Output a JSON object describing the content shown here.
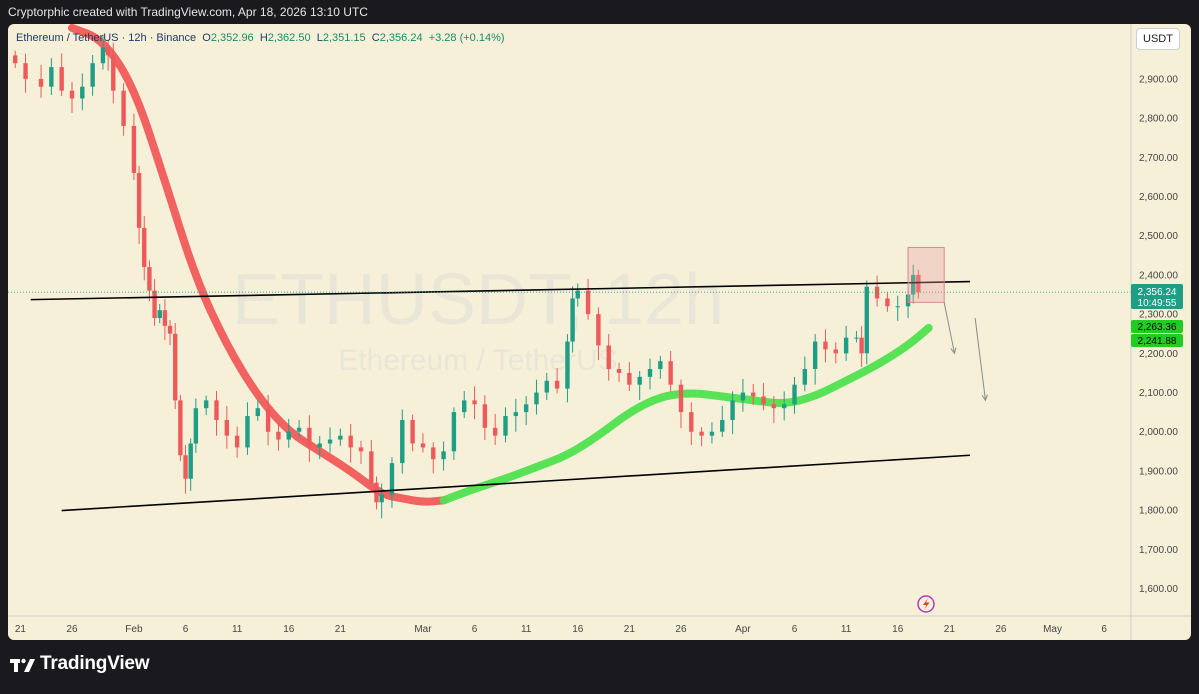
{
  "header": {
    "attribution": "Cryptorphic created with TradingView.com, Apr 18, 2026 13:10 UTC"
  },
  "legend": {
    "symbol": "Ethereum / TetherUS · 12h · Binance",
    "o_label": "O",
    "o_value": "2,352.96",
    "h_label": "H",
    "h_value": "2,362.50",
    "l_label": "L",
    "l_value": "2,351.15",
    "c_label": "C",
    "c_value": "2,356.24",
    "change": "+3.28 (+0.14%)"
  },
  "watermark": {
    "main": "ETHUSDT, 12h",
    "sub": "Ethereum / TetherUS"
  },
  "currency_button": "USDT",
  "price_badges": {
    "last_price": "2,356.24",
    "countdown": "10:49:55",
    "ma_fast": "2,263.36",
    "ma_slow": "2,241.88"
  },
  "footer": {
    "logo_text": "TradingView"
  },
  "colors": {
    "background": "#f6f0d9",
    "up_candle": "#1f9e86",
    "down_candle": "#ee5a5a",
    "ma_red": "#f05a5a",
    "ma_green": "#4fe04f",
    "trendline": "#000000",
    "highlight_box": "#e8a0a0"
  },
  "icons": {
    "bottom_marker": "lightning-icon",
    "logo": "tradingview-logo-icon"
  },
  "chart_data": {
    "type": "candlestick",
    "timeframe": "12h",
    "ylim": [
      1530,
      3040
    ],
    "y_ticks": [
      1600,
      1700,
      1800,
      1900,
      2000,
      2100,
      2200,
      2300,
      2400,
      2500,
      2600,
      2700,
      2800,
      2900
    ],
    "y_tick_labels": [
      "1,600.00",
      "1,700.00",
      "1,800.00",
      "1,900.00",
      "2,000.00",
      "2,100.00",
      "2,200.00",
      "2,300.00",
      "2,400.00",
      "2,500.00",
      "2,600.00",
      "2,700.00",
      "2,800.00",
      "2,900.00"
    ],
    "x_ticks": [
      {
        "label": "21",
        "day": -11
      },
      {
        "label": "26",
        "day": -6
      },
      {
        "label": "Feb",
        "day": 0
      },
      {
        "label": "6",
        "day": 5
      },
      {
        "label": "11",
        "day": 10
      },
      {
        "label": "16",
        "day": 15
      },
      {
        "label": "21",
        "day": 20
      },
      {
        "label": "Mar",
        "day": 28
      },
      {
        "label": "6",
        "day": 33
      },
      {
        "label": "11",
        "day": 38
      },
      {
        "label": "16",
        "day": 43
      },
      {
        "label": "21",
        "day": 48
      },
      {
        "label": "26",
        "day": 53
      },
      {
        "label": "Apr",
        "day": 59
      },
      {
        "label": "6",
        "day": 64
      },
      {
        "label": "11",
        "day": 69
      },
      {
        "label": "16",
        "day": 74
      },
      {
        "label": "21",
        "day": 79
      },
      {
        "label": "26",
        "day": 84
      },
      {
        "label": "May",
        "day": 89
      },
      {
        "label": "6",
        "day": 94
      }
    ],
    "x_range_days": [
      -12.2,
      96.6
    ],
    "close_points_day_value": [
      [
        -11.5,
        2940
      ],
      [
        -10.5,
        2900
      ],
      [
        -9,
        2880
      ],
      [
        -8,
        2930
      ],
      [
        -7,
        2870
      ],
      [
        -6,
        2850
      ],
      [
        -5,
        2880
      ],
      [
        -4,
        2940
      ],
      [
        -3,
        2980
      ],
      [
        -2.5,
        2960
      ],
      [
        -2,
        2870
      ],
      [
        -1,
        2780
      ],
      [
        0,
        2660
      ],
      [
        0.5,
        2520
      ],
      [
        1,
        2420
      ],
      [
        1.5,
        2360
      ],
      [
        2,
        2290
      ],
      [
        2.5,
        2310
      ],
      [
        3,
        2270
      ],
      [
        3.5,
        2250
      ],
      [
        4,
        2080
      ],
      [
        4.5,
        1940
      ],
      [
        5,
        1880
      ],
      [
        5.5,
        1970
      ],
      [
        6,
        2060
      ],
      [
        7,
        2080
      ],
      [
        8,
        2030
      ],
      [
        9,
        1990
      ],
      [
        10,
        1960
      ],
      [
        11,
        2040
      ],
      [
        12,
        2060
      ],
      [
        13,
        2000
      ],
      [
        14,
        1980
      ],
      [
        15,
        2000
      ],
      [
        16,
        2010
      ],
      [
        17,
        1960
      ],
      [
        18,
        1970
      ],
      [
        19,
        1980
      ],
      [
        20,
        1990
      ],
      [
        21,
        1960
      ],
      [
        22,
        1950
      ],
      [
        23,
        1870
      ],
      [
        23.5,
        1820
      ],
      [
        24,
        1840
      ],
      [
        25,
        1920
      ],
      [
        26,
        2030
      ],
      [
        27,
        1970
      ],
      [
        28,
        1960
      ],
      [
        29,
        1930
      ],
      [
        30,
        1950
      ],
      [
        31,
        2050
      ],
      [
        32,
        2080
      ],
      [
        33,
        2070
      ],
      [
        34,
        2010
      ],
      [
        35,
        1990
      ],
      [
        36,
        2040
      ],
      [
        37,
        2050
      ],
      [
        38,
        2070
      ],
      [
        39,
        2100
      ],
      [
        40,
        2130
      ],
      [
        41,
        2110
      ],
      [
        42,
        2230
      ],
      [
        42.5,
        2340
      ],
      [
        43,
        2360
      ],
      [
        44,
        2300
      ],
      [
        45,
        2220
      ],
      [
        46,
        2160
      ],
      [
        47,
        2150
      ],
      [
        48,
        2120
      ],
      [
        49,
        2140
      ],
      [
        50,
        2160
      ],
      [
        51,
        2180
      ],
      [
        52,
        2120
      ],
      [
        53,
        2050
      ],
      [
        54,
        2000
      ],
      [
        55,
        1990
      ],
      [
        56,
        2000
      ],
      [
        57,
        2030
      ],
      [
        58,
        2080
      ],
      [
        59,
        2100
      ],
      [
        60,
        2090
      ],
      [
        61,
        2070
      ],
      [
        62,
        2060
      ],
      [
        63,
        2070
      ],
      [
        64,
        2120
      ],
      [
        65,
        2160
      ],
      [
        66,
        2230
      ],
      [
        67,
        2210
      ],
      [
        68,
        2200
      ],
      [
        69,
        2240
      ],
      [
        70,
        2240
      ],
      [
        70.5,
        2200
      ],
      [
        71,
        2370
      ],
      [
        72,
        2340
      ],
      [
        73,
        2320
      ],
      [
        74,
        2320
      ],
      [
        75,
        2350
      ],
      [
        75.5,
        2400
      ],
      [
        76,
        2356
      ]
    ],
    "series": [
      {
        "type": "moving-average",
        "color": "red",
        "points": [
          [
            -6,
            3030
          ],
          [
            -3,
            3000
          ],
          [
            0,
            2880
          ],
          [
            3,
            2640
          ],
          [
            6,
            2390
          ],
          [
            9,
            2220
          ],
          [
            12,
            2090
          ],
          [
            15,
            2000
          ],
          [
            18,
            1950
          ],
          [
            21,
            1900
          ],
          [
            24,
            1840
          ],
          [
            26,
            1830
          ],
          [
            28,
            1820
          ],
          [
            30,
            1825
          ]
        ]
      },
      {
        "type": "moving-average",
        "color": "green",
        "points": [
          [
            30,
            1825
          ],
          [
            33,
            1855
          ],
          [
            36,
            1880
          ],
          [
            39,
            1910
          ],
          [
            42,
            1940
          ],
          [
            45,
            1990
          ],
          [
            48,
            2050
          ],
          [
            51,
            2090
          ],
          [
            54,
            2100
          ],
          [
            57,
            2090
          ],
          [
            60,
            2080
          ],
          [
            63,
            2070
          ],
          [
            66,
            2090
          ],
          [
            69,
            2130
          ],
          [
            72,
            2170
          ],
          [
            75,
            2220
          ],
          [
            77,
            2265
          ]
        ]
      }
    ],
    "trendlines": [
      {
        "from": [
          -10,
          2337
        ],
        "to": [
          81,
          2383
        ]
      },
      {
        "from": [
          -7,
          1799
        ],
        "to": [
          81,
          1940
        ]
      }
    ],
    "highlight_box": {
      "day_from": 75,
      "day_to": 78.5,
      "price_from": 2330,
      "price_to": 2470
    },
    "projection_arrows": [
      {
        "from": [
          78.5,
          2330
        ],
        "to": [
          79.5,
          2200
        ]
      },
      {
        "from": [
          81.5,
          2290
        ],
        "to": [
          82.5,
          2080
        ]
      }
    ]
  }
}
